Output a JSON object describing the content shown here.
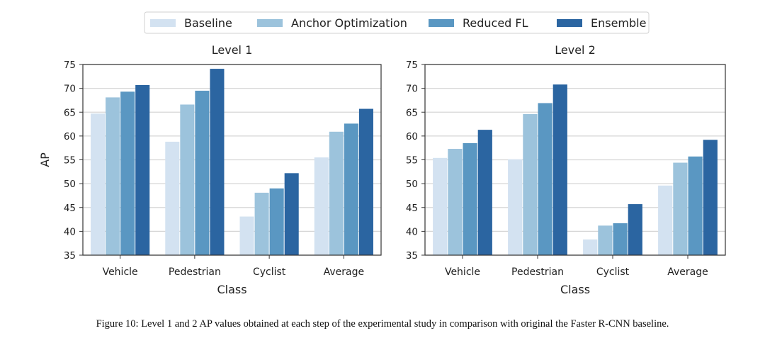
{
  "legend": {
    "placement": "top-center",
    "entries": [
      "Baseline",
      "Anchor Optimization",
      "Reduced FL",
      "Ensemble"
    ]
  },
  "colors": {
    "Baseline": "#d3e2f1",
    "Anchor Optimization": "#9cc3dc",
    "Reduced FL": "#5a97c2",
    "Ensemble": "#2b65a1"
  },
  "chart_data": [
    {
      "type": "bar",
      "title": "Level 1",
      "xlabel": "Class",
      "ylabel": "AP",
      "ylim": [
        35,
        75
      ],
      "yticks": [
        35,
        40,
        45,
        50,
        55,
        60,
        65,
        70,
        75
      ],
      "grid": true,
      "categories": [
        "Vehicle",
        "Pedestrian",
        "Cyclist",
        "Average"
      ],
      "series": [
        {
          "name": "Baseline",
          "values": [
            64.7,
            58.8,
            43.1,
            55.5
          ]
        },
        {
          "name": "Anchor Optimization",
          "values": [
            68.1,
            66.6,
            48.1,
            60.9
          ]
        },
        {
          "name": "Reduced FL",
          "values": [
            69.3,
            69.5,
            49.0,
            62.6
          ]
        },
        {
          "name": "Ensemble",
          "values": [
            70.7,
            74.1,
            52.2,
            65.7
          ]
        }
      ]
    },
    {
      "type": "bar",
      "title": "Level 2",
      "xlabel": "Class",
      "ylabel": "",
      "ylim": [
        35,
        75
      ],
      "yticks": [
        35,
        40,
        45,
        50,
        55,
        60,
        65,
        70,
        75
      ],
      "grid": true,
      "categories": [
        "Vehicle",
        "Pedestrian",
        "Cyclist",
        "Average"
      ],
      "series": [
        {
          "name": "Baseline",
          "values": [
            55.4,
            55.1,
            38.3,
            49.6
          ]
        },
        {
          "name": "Anchor Optimization",
          "values": [
            57.3,
            64.6,
            41.2,
            54.4
          ]
        },
        {
          "name": "Reduced FL",
          "values": [
            58.5,
            66.9,
            41.7,
            55.7
          ]
        },
        {
          "name": "Ensemble",
          "values": [
            61.3,
            70.8,
            45.7,
            59.2
          ]
        }
      ]
    }
  ],
  "caption": "Figure 10: Level 1 and 2 AP values obtained at each step of the experimental study in comparison with original the Faster R-CNN baseline."
}
